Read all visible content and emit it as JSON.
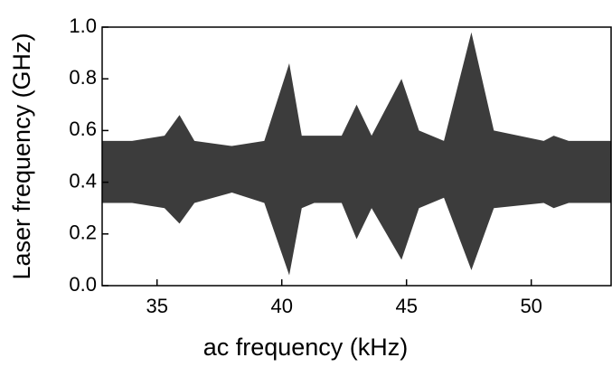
{
  "chart_data": {
    "type": "band",
    "xlabel": "ac frequency (kHz)",
    "ylabel": "Laser frequency (GHz)",
    "xlim": [
      32.8,
      53.2
    ],
    "ylim": [
      0,
      1
    ],
    "xticks": [
      35,
      40,
      45,
      50
    ],
    "yticks": [
      {
        "value": 0,
        "label": "0.0"
      },
      0.2,
      0.4,
      0.6,
      0.8,
      {
        "value": 1,
        "label": "1.0"
      }
    ],
    "x": [
      32.8,
      34,
      35.3,
      35.9,
      36.5,
      38,
      39.3,
      40.3,
      40.8,
      41.3,
      42.4,
      43.0,
      43.6,
      44.8,
      45.5,
      46.5,
      47.6,
      48.5,
      50.5,
      50.9,
      51.5,
      53.2
    ],
    "series": [
      {
        "color": "#1a1a1a",
        "upper": [
          0.56,
          0.56,
          0.58,
          0.66,
          0.56,
          0.54,
          0.56,
          0.86,
          0.58,
          0.58,
          0.58,
          0.7,
          0.58,
          0.8,
          0.6,
          0.56,
          0.98,
          0.6,
          0.56,
          0.58,
          0.56,
          0.56
        ],
        "lower": [
          0.32,
          0.32,
          0.3,
          0.24,
          0.32,
          0.36,
          0.32,
          0.04,
          0.3,
          0.32,
          0.32,
          0.18,
          0.3,
          0.1,
          0.3,
          0.34,
          0.06,
          0.3,
          0.32,
          0.3,
          0.32,
          0.32
        ]
      }
    ]
  }
}
